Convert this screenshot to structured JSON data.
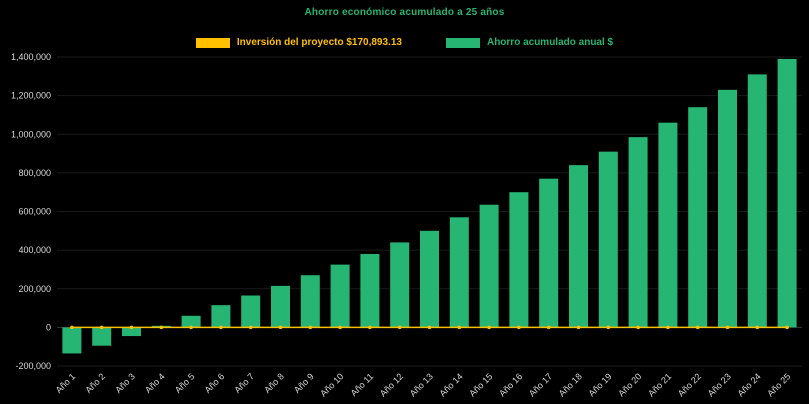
{
  "background": "#000000",
  "colors": {
    "title": "#26B573",
    "axis_text": "#D9D9D9",
    "gridline": "#1A1A1A",
    "zero_line": "#3A3A3A",
    "bar_green": "#26B573",
    "line_yellow": "#FFC000"
  },
  "legend": {
    "items": [
      {
        "label": "Inversión del proyecto $170,893.13",
        "color": "#FFC000"
      },
      {
        "label": "Ahorro acumulado anual $",
        "color": "#26B573"
      }
    ]
  },
  "chart_data": {
    "type": "bar",
    "title": "Ahorro económico acumulado a 25 años",
    "xlabel": "",
    "ylabel": "",
    "ylim": [
      -200000,
      1400000
    ],
    "ytick_values": [
      -200000,
      0,
      200000,
      400000,
      600000,
      800000,
      1000000,
      1200000,
      1400000
    ],
    "ytick_labels": [
      "-200,000",
      "0",
      "200,000",
      "400,000",
      "600,000",
      "800,000",
      "1,000,000",
      "1,200,000",
      "1,400,000"
    ],
    "grid": "faint horizontal",
    "legend_position": "top center",
    "categories": [
      "Año 1",
      "Año 2",
      "Año 3",
      "Año 4",
      "Año 5",
      "Año 6",
      "Año 7",
      "Año 8",
      "Año 9",
      "Año 10",
      "Año 11",
      "Año 12",
      "Año 13",
      "Año 14",
      "Año 15",
      "Año 16",
      "Año 17",
      "Año 18",
      "Año 19",
      "Año 20",
      "Año 21",
      "Año 22",
      "Año 23",
      "Año 24",
      "Año 25"
    ],
    "series": [
      {
        "name": "Ahorro acumulado anual $",
        "type": "bar",
        "color": "#26B573",
        "values": [
          -135000,
          -95000,
          -45000,
          8000,
          60000,
          115000,
          165000,
          215000,
          270000,
          325000,
          380000,
          440000,
          500000,
          570000,
          635000,
          700000,
          770000,
          840000,
          910000,
          985000,
          1060000,
          1140000,
          1230000,
          1310000,
          1390000
        ]
      },
      {
        "name": "Inversión del proyecto $170,893.13",
        "type": "line",
        "color": "#FFC000",
        "values": [
          0,
          0,
          0,
          0,
          0,
          0,
          0,
          0,
          0,
          0,
          0,
          0,
          0,
          0,
          0,
          0,
          0,
          0,
          0,
          0,
          0,
          0,
          0,
          0,
          0
        ]
      }
    ]
  }
}
